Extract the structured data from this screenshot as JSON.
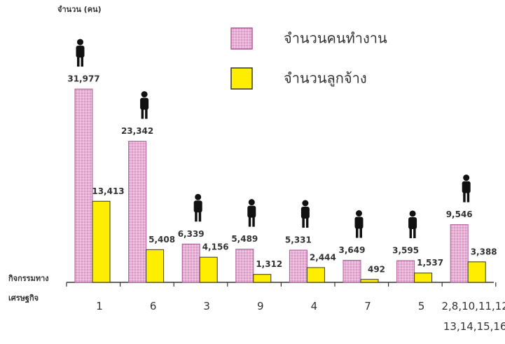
{
  "chart_data": {
    "type": "bar",
    "y_label": "จำนวน (คน)",
    "x_label": "กิจกรรมทาง\nเศรษฐกิจ",
    "categories": [
      "1",
      "6",
      "3",
      "9",
      "4",
      "7",
      "5",
      "2,8,10,11,12\n13,14,15,16"
    ],
    "series": [
      {
        "name": "จำนวนคนทำงาน",
        "color": "#e6b3d6",
        "values": [
          31977,
          23342,
          6339,
          5489,
          5331,
          3649,
          3595,
          9546
        ],
        "value_labels": [
          "31,977",
          "23,342",
          "6,339",
          "5,489",
          "5,331",
          "3,649",
          "3,595",
          "9,546"
        ]
      },
      {
        "name": "จำนวนลูกจ้าง",
        "color": "#ffee00",
        "values": [
          13413,
          5408,
          4156,
          1312,
          2444,
          492,
          1537,
          3388
        ],
        "value_labels": [
          "13,413",
          "5,408",
          "4,156",
          "1,312",
          "2,444",
          "492",
          "1,537",
          "3,388"
        ]
      }
    ],
    "ylim": [
      0,
      35000
    ]
  }
}
